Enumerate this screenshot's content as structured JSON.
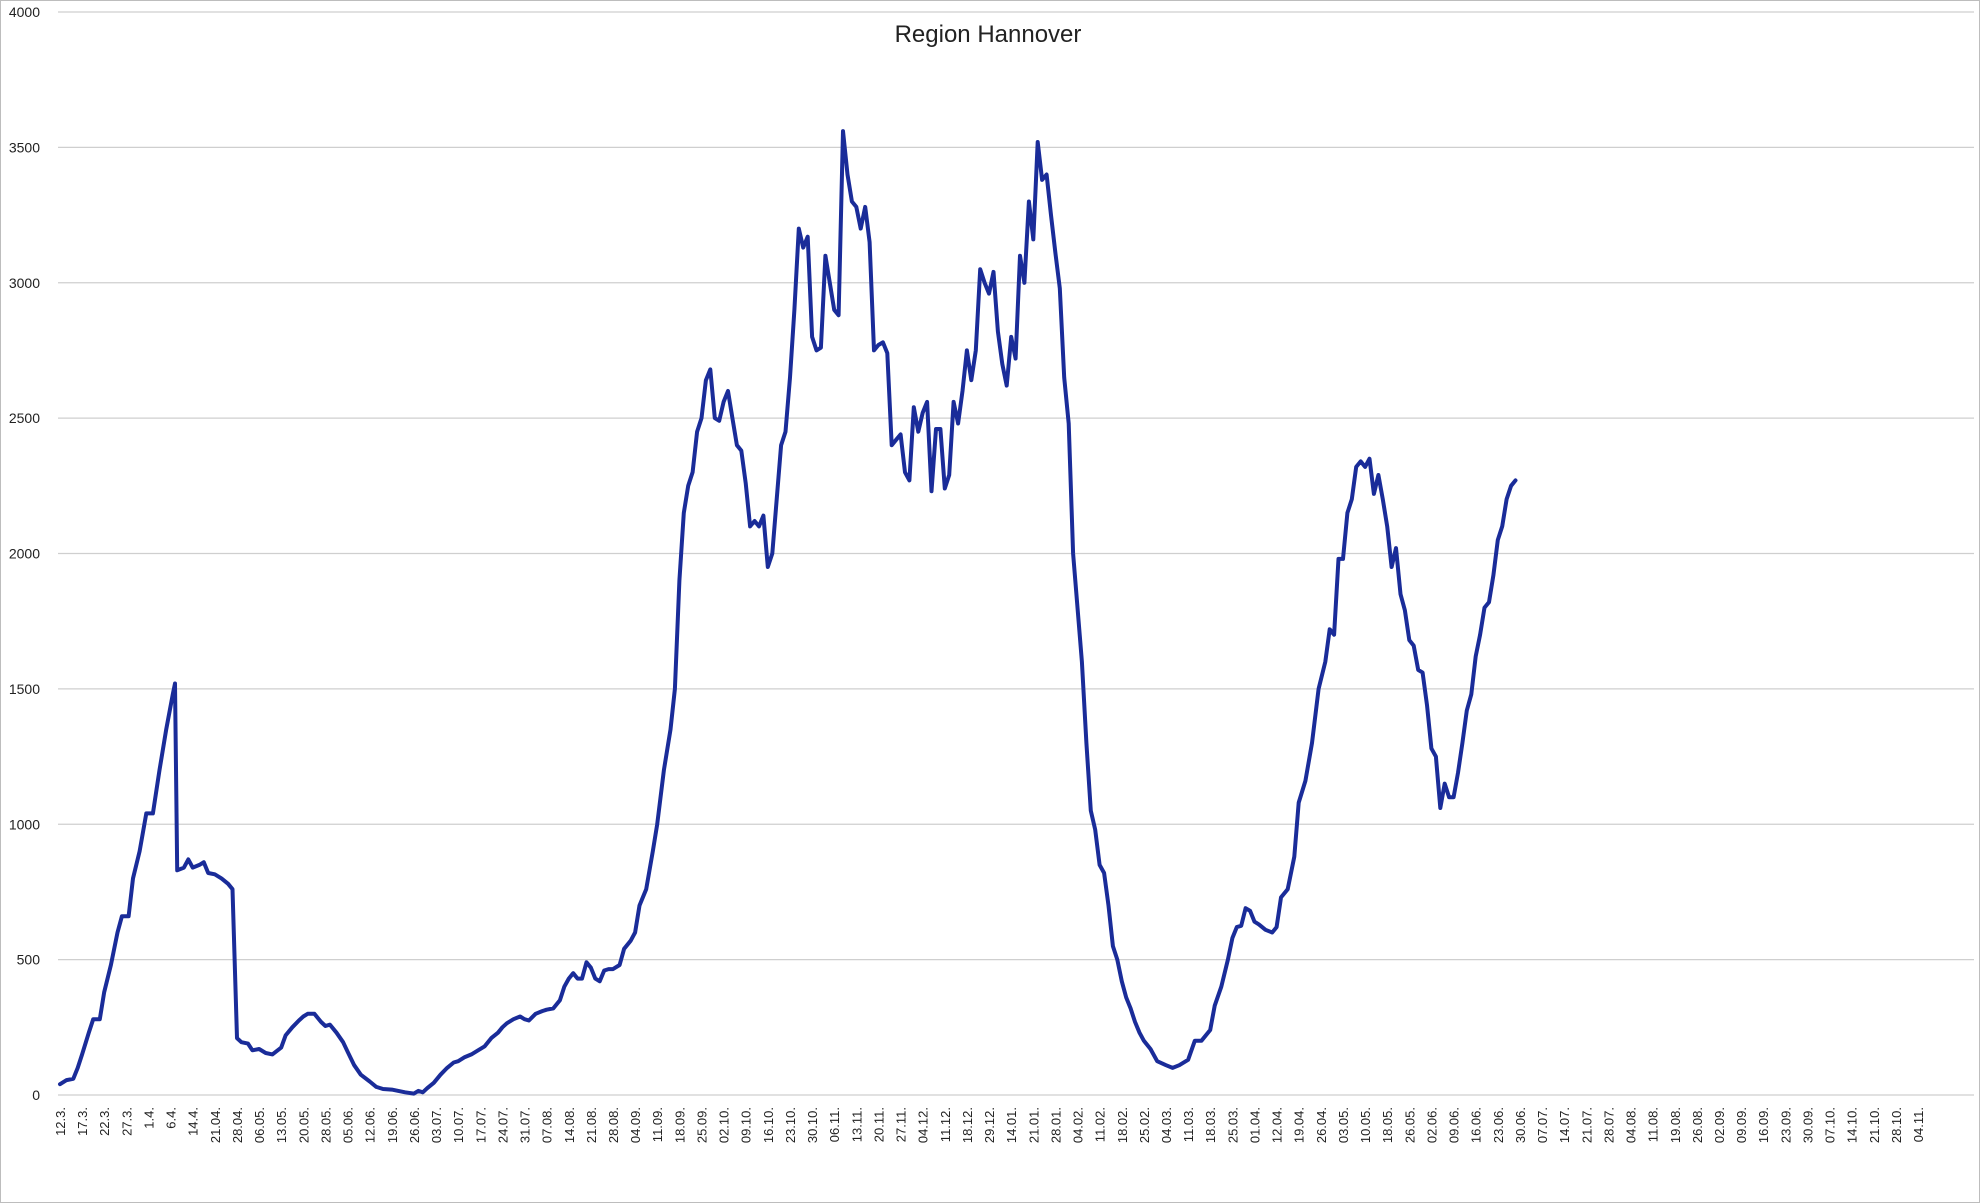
{
  "chart_data": {
    "type": "line",
    "title": "Region Hannover",
    "xlabel": "",
    "ylabel": "",
    "ylim": [
      0,
      4000
    ],
    "yticks": [
      0,
      500,
      1000,
      1500,
      2000,
      2500,
      3000,
      3500,
      4000
    ],
    "grid": true,
    "legend": "none",
    "color": "#1a2c99",
    "categories": [
      "12.3.",
      "17.3.",
      "22.3.",
      "27.3.",
      "1.4.",
      "6.4.",
      "14.4.",
      "21.04.",
      "28.04.",
      "06.05.",
      "13.05.",
      "20.05.",
      "28.05.",
      "05.06.",
      "12.06.",
      "19.06.",
      "26.06.",
      "03.07.",
      "10.07.",
      "17.07.",
      "24.07.",
      "31.07.",
      "07.08.",
      "14.08.",
      "21.08.",
      "28.08.",
      "04.09.",
      "11.09.",
      "18.09.",
      "25.09.",
      "02.10.",
      "09.10.",
      "16.10.",
      "23.10.",
      "30.10.",
      "06.11.",
      "13.11.",
      "20.11.",
      "27.11.",
      "04.12.",
      "11.12.",
      "18.12.",
      "29.12.",
      "14.01.",
      "21.01.",
      "28.01.",
      "04.02.",
      "11.02.",
      "18.02.",
      "25.02.",
      "04.03.",
      "11.03.",
      "18.03.",
      "25.03.",
      "01.04.",
      "12.04.",
      "19.04.",
      "26.04.",
      "03.05.",
      "10.05.",
      "18.05.",
      "26.05.",
      "02.06.",
      "09.06.",
      "16.06.",
      "23.06.",
      "30.06.",
      "07.07.",
      "14.07.",
      "21.07.",
      "28.07.",
      "04.08.",
      "11.08.",
      "19.08.",
      "26.08.",
      "02.09.",
      "09.09.",
      "16.09.",
      "23.09.",
      "30.09.",
      "07.10.",
      "14.10.",
      "21.10.",
      "28.10.",
      "04.11."
    ],
    "series": [
      {
        "points": [
          [
            0,
            40
          ],
          [
            0.3,
            55
          ],
          [
            0.6,
            60
          ],
          [
            0.8,
            100
          ],
          [
            1,
            150
          ],
          [
            1.3,
            230
          ],
          [
            1.5,
            280
          ],
          [
            1.8,
            280
          ],
          [
            2,
            380
          ],
          [
            2.3,
            480
          ],
          [
            2.6,
            600
          ],
          [
            2.8,
            660
          ],
          [
            3.1,
            660
          ],
          [
            3.3,
            800
          ],
          [
            3.6,
            900
          ],
          [
            3.9,
            1040
          ],
          [
            4.2,
            1040
          ],
          [
            4.5,
            1200
          ],
          [
            4.8,
            1350
          ],
          [
            5.1,
            1480
          ],
          [
            5.2,
            1520
          ],
          [
            5.3,
            830
          ],
          [
            5.6,
            840
          ],
          [
            5.8,
            870
          ],
          [
            6,
            840
          ],
          [
            6.3,
            850
          ],
          [
            6.5,
            860
          ],
          [
            6.7,
            820
          ],
          [
            7,
            815
          ],
          [
            7.3,
            800
          ],
          [
            7.6,
            780
          ],
          [
            7.8,
            760
          ],
          [
            8,
            210
          ],
          [
            8.2,
            195
          ],
          [
            8.5,
            190
          ],
          [
            8.7,
            165
          ],
          [
            9,
            170
          ],
          [
            9.3,
            155
          ],
          [
            9.6,
            150
          ],
          [
            10,
            175
          ],
          [
            10.2,
            220
          ],
          [
            10.5,
            250
          ],
          [
            10.8,
            275
          ],
          [
            11,
            290
          ],
          [
            11.2,
            300
          ],
          [
            11.5,
            300
          ],
          [
            11.8,
            270
          ],
          [
            12,
            255
          ],
          [
            12.2,
            260
          ],
          [
            12.5,
            230
          ],
          [
            12.8,
            195
          ],
          [
            13,
            160
          ],
          [
            13.3,
            110
          ],
          [
            13.6,
            75
          ],
          [
            14,
            50
          ],
          [
            14.3,
            30
          ],
          [
            14.6,
            22
          ],
          [
            15,
            20
          ],
          [
            15.3,
            15
          ],
          [
            15.6,
            10
          ],
          [
            16,
            5
          ],
          [
            16.2,
            15
          ],
          [
            16.4,
            10
          ],
          [
            16.6,
            25
          ],
          [
            16.9,
            45
          ],
          [
            17.2,
            75
          ],
          [
            17.5,
            100
          ],
          [
            17.8,
            120
          ],
          [
            18,
            125
          ],
          [
            18.3,
            140
          ],
          [
            18.6,
            150
          ],
          [
            18.9,
            165
          ],
          [
            19.2,
            180
          ],
          [
            19.5,
            210
          ],
          [
            19.8,
            230
          ],
          [
            20,
            250
          ],
          [
            20.2,
            265
          ],
          [
            20.5,
            280
          ],
          [
            20.8,
            290
          ],
          [
            21,
            280
          ],
          [
            21.2,
            275
          ],
          [
            21.5,
            300
          ],
          [
            21.8,
            310
          ],
          [
            22,
            315
          ],
          [
            22.3,
            320
          ],
          [
            22.6,
            350
          ],
          [
            22.8,
            400
          ],
          [
            23,
            430
          ],
          [
            23.2,
            450
          ],
          [
            23.4,
            430
          ],
          [
            23.6,
            430
          ],
          [
            23.8,
            490
          ],
          [
            24,
            470
          ],
          [
            24.2,
            430
          ],
          [
            24.4,
            420
          ],
          [
            24.6,
            460
          ],
          [
            24.8,
            465
          ],
          [
            25,
            465
          ],
          [
            25.3,
            480
          ],
          [
            25.5,
            540
          ],
          [
            25.8,
            570
          ],
          [
            26,
            600
          ],
          [
            26.2,
            700
          ],
          [
            26.5,
            760
          ],
          [
            26.8,
            900
          ],
          [
            27,
            1000
          ],
          [
            27.3,
            1200
          ],
          [
            27.6,
            1350
          ],
          [
            27.8,
            1500
          ],
          [
            28,
            1900
          ],
          [
            28.2,
            2150
          ],
          [
            28.4,
            2250
          ],
          [
            28.6,
            2300
          ],
          [
            28.8,
            2450
          ],
          [
            29,
            2500
          ],
          [
            29.2,
            2640
          ],
          [
            29.4,
            2680
          ],
          [
            29.6,
            2500
          ],
          [
            29.8,
            2490
          ],
          [
            30,
            2560
          ],
          [
            30.2,
            2600
          ],
          [
            30.4,
            2500
          ],
          [
            30.6,
            2400
          ],
          [
            30.8,
            2380
          ],
          [
            31,
            2260
          ],
          [
            31.2,
            2100
          ],
          [
            31.4,
            2120
          ],
          [
            31.6,
            2100
          ],
          [
            31.8,
            2140
          ],
          [
            32,
            1950
          ],
          [
            32.2,
            2000
          ],
          [
            32.4,
            2200
          ],
          [
            32.6,
            2400
          ],
          [
            32.8,
            2450
          ],
          [
            33,
            2650
          ],
          [
            33.2,
            2900
          ],
          [
            33.4,
            3200
          ],
          [
            33.6,
            3130
          ],
          [
            33.8,
            3170
          ],
          [
            34,
            2800
          ],
          [
            34.2,
            2750
          ],
          [
            34.4,
            2760
          ],
          [
            34.6,
            3100
          ],
          [
            34.8,
            3000
          ],
          [
            35,
            2900
          ],
          [
            35.2,
            2880
          ],
          [
            35.4,
            3560
          ],
          [
            35.6,
            3400
          ],
          [
            35.8,
            3300
          ],
          [
            36,
            3280
          ],
          [
            36.2,
            3200
          ],
          [
            36.4,
            3280
          ],
          [
            36.6,
            3150
          ],
          [
            36.8,
            2750
          ],
          [
            37,
            2770
          ],
          [
            37.2,
            2780
          ],
          [
            37.4,
            2740
          ],
          [
            37.6,
            2400
          ],
          [
            37.8,
            2420
          ],
          [
            38,
            2440
          ],
          [
            38.2,
            2300
          ],
          [
            38.4,
            2270
          ],
          [
            38.6,
            2540
          ],
          [
            38.8,
            2450
          ],
          [
            39,
            2520
          ],
          [
            39.2,
            2560
          ],
          [
            39.4,
            2230
          ],
          [
            39.6,
            2460
          ],
          [
            39.8,
            2460
          ],
          [
            40,
            2240
          ],
          [
            40.2,
            2290
          ],
          [
            40.4,
            2560
          ],
          [
            40.6,
            2480
          ],
          [
            40.8,
            2600
          ],
          [
            41,
            2750
          ],
          [
            41.2,
            2640
          ],
          [
            41.4,
            2750
          ],
          [
            41.6,
            3050
          ],
          [
            41.8,
            3000
          ],
          [
            42,
            2960
          ],
          [
            42.2,
            3040
          ],
          [
            42.4,
            2820
          ],
          [
            42.6,
            2700
          ],
          [
            42.8,
            2620
          ],
          [
            43,
            2800
          ],
          [
            43.2,
            2720
          ],
          [
            43.4,
            3100
          ],
          [
            43.6,
            3000
          ],
          [
            43.8,
            3300
          ],
          [
            44,
            3160
          ],
          [
            44.2,
            3520
          ],
          [
            44.4,
            3380
          ],
          [
            44.6,
            3400
          ],
          [
            44.8,
            3250
          ],
          [
            45,
            3110
          ],
          [
            45.2,
            2980
          ],
          [
            45.4,
            2650
          ],
          [
            45.6,
            2480
          ],
          [
            45.8,
            2000
          ],
          [
            46,
            1800
          ],
          [
            46.2,
            1600
          ],
          [
            46.4,
            1300
          ],
          [
            46.6,
            1050
          ],
          [
            46.8,
            980
          ],
          [
            47,
            850
          ],
          [
            47.2,
            820
          ],
          [
            47.4,
            700
          ],
          [
            47.6,
            550
          ],
          [
            47.8,
            500
          ],
          [
            48,
            420
          ],
          [
            48.2,
            360
          ],
          [
            48.4,
            320
          ],
          [
            48.6,
            270
          ],
          [
            48.8,
            230
          ],
          [
            49,
            200
          ],
          [
            49.3,
            170
          ],
          [
            49.6,
            125
          ],
          [
            50,
            110
          ],
          [
            50.3,
            100
          ],
          [
            50.6,
            110
          ],
          [
            51,
            130
          ],
          [
            51.3,
            200
          ],
          [
            51.6,
            200
          ],
          [
            52,
            240
          ],
          [
            52.2,
            330
          ],
          [
            52.5,
            400
          ],
          [
            52.8,
            500
          ],
          [
            53,
            580
          ],
          [
            53.2,
            620
          ],
          [
            53.4,
            625
          ],
          [
            53.6,
            690
          ],
          [
            53.8,
            680
          ],
          [
            54,
            640
          ],
          [
            54.2,
            630
          ],
          [
            54.5,
            610
          ],
          [
            54.8,
            600
          ],
          [
            55,
            620
          ],
          [
            55.2,
            730
          ],
          [
            55.5,
            760
          ],
          [
            55.8,
            880
          ],
          [
            56,
            1080
          ],
          [
            56.3,
            1160
          ],
          [
            56.6,
            1300
          ],
          [
            56.9,
            1500
          ],
          [
            57.2,
            1600
          ],
          [
            57.4,
            1720
          ],
          [
            57.6,
            1700
          ],
          [
            57.8,
            1980
          ],
          [
            58,
            1980
          ],
          [
            58.2,
            2150
          ],
          [
            58.4,
            2200
          ],
          [
            58.6,
            2320
          ],
          [
            58.8,
            2340
          ],
          [
            59,
            2320
          ],
          [
            59.2,
            2350
          ],
          [
            59.4,
            2220
          ],
          [
            59.6,
            2290
          ],
          [
            59.8,
            2200
          ],
          [
            60,
            2100
          ],
          [
            60.2,
            1950
          ],
          [
            60.4,
            2020
          ],
          [
            60.6,
            1850
          ],
          [
            60.8,
            1790
          ],
          [
            61,
            1680
          ],
          [
            61.2,
            1660
          ],
          [
            61.4,
            1570
          ],
          [
            61.6,
            1560
          ],
          [
            61.8,
            1440
          ],
          [
            62,
            1280
          ],
          [
            62.2,
            1250
          ],
          [
            62.4,
            1060
          ],
          [
            62.6,
            1150
          ],
          [
            62.8,
            1100
          ],
          [
            63,
            1100
          ],
          [
            63.2,
            1190
          ],
          [
            63.4,
            1300
          ],
          [
            63.6,
            1420
          ],
          [
            63.8,
            1480
          ],
          [
            64,
            1620
          ],
          [
            64.2,
            1700
          ],
          [
            64.4,
            1800
          ],
          [
            64.6,
            1820
          ],
          [
            64.8,
            1920
          ],
          [
            65,
            2050
          ],
          [
            65.2,
            2100
          ],
          [
            65.4,
            2200
          ],
          [
            65.6,
            2250
          ],
          [
            65.8,
            2270
          ]
        ]
      }
    ]
  }
}
